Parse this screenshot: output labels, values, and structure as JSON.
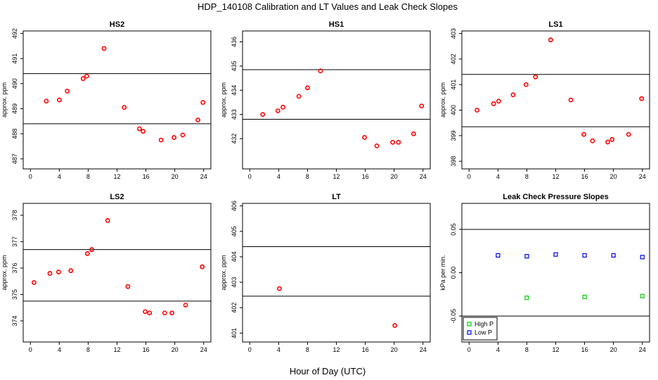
{
  "figure": {
    "title": "HDP_140108  Calibration and LT Values and Leak Check Slopes",
    "xlabel": "Hour of Day (UTC)"
  },
  "chart_data": [
    {
      "type": "scatter",
      "title": "HS2",
      "xlabel": "",
      "ylabel": "approx. ppm",
      "xlim": [
        -1,
        25
      ],
      "ylim": [
        486.6,
        492.1
      ],
      "xticks": [
        "0",
        "4",
        "8",
        "12",
        "16",
        "20",
        "24"
      ],
      "yticks": [
        "487",
        "488",
        "489",
        "490",
        "491",
        "492"
      ],
      "hlines": [
        490.4,
        488.4
      ],
      "series": [
        {
          "marker": "circle",
          "color": "#ff0000",
          "x": [
            2.2,
            4.0,
            5.1,
            7.3,
            7.8,
            10.2,
            13.0,
            15.1,
            15.6,
            18.1,
            19.9,
            21.1,
            23.2,
            23.9
          ],
          "y": [
            489.3,
            489.35,
            489.7,
            490.2,
            490.3,
            491.4,
            489.05,
            488.2,
            488.1,
            487.75,
            487.85,
            487.95,
            488.55,
            489.25
          ]
        }
      ]
    },
    {
      "type": "scatter",
      "title": "HS1",
      "xlabel": "",
      "ylabel": "approx. ppm",
      "xlim": [
        -1,
        25
      ],
      "ylim": [
        430.75,
        436.45
      ],
      "xticks": [
        "0",
        "4",
        "8",
        "12",
        "16",
        "20",
        "24"
      ],
      "yticks": [
        "432",
        "433",
        "434",
        "435",
        "436"
      ],
      "hlines": [
        434.85,
        432.8
      ],
      "series": [
        {
          "marker": "circle",
          "color": "#ff0000",
          "x": [
            1.8,
            3.9,
            4.6,
            6.8,
            8.0,
            9.8,
            15.9,
            17.6,
            19.8,
            20.6,
            22.7,
            23.8
          ],
          "y": [
            433.0,
            433.15,
            433.3,
            433.75,
            434.1,
            434.8,
            432.05,
            431.7,
            431.85,
            431.85,
            432.2,
            433.35
          ]
        }
      ]
    },
    {
      "type": "scatter",
      "title": "LS1",
      "xlabel": "",
      "ylabel": "approx. ppm",
      "xlim": [
        -1,
        25
      ],
      "ylim": [
        397.7,
        403.1
      ],
      "xticks": [
        "0",
        "4",
        "8",
        "12",
        "16",
        "20",
        "24"
      ],
      "yticks": [
        "398",
        "399",
        "400",
        "401",
        "402",
        "403"
      ],
      "hlines": [
        401.4,
        399.35
      ],
      "series": [
        {
          "marker": "circle",
          "color": "#ff0000",
          "x": [
            1.1,
            3.4,
            4.1,
            6.1,
            7.9,
            9.2,
            11.3,
            14.1,
            15.9,
            17.1,
            19.2,
            19.8,
            22.1,
            23.9
          ],
          "y": [
            400.0,
            400.25,
            400.35,
            400.6,
            401.0,
            401.3,
            402.75,
            400.4,
            399.05,
            398.8,
            398.75,
            398.85,
            399.05,
            400.45
          ]
        }
      ]
    },
    {
      "type": "scatter",
      "title": "LS2",
      "xlabel": "",
      "ylabel": "approx. ppm",
      "xlim": [
        -1,
        25
      ],
      "ylim": [
        373.2,
        378.45
      ],
      "xticks": [
        "0",
        "4",
        "8",
        "12",
        "16",
        "20",
        "24"
      ],
      "yticks": [
        "374",
        "375",
        "376",
        "377",
        "378"
      ],
      "hlines": [
        376.7,
        374.75
      ],
      "series": [
        {
          "marker": "circle",
          "color": "#ff0000",
          "x": [
            0.5,
            2.7,
            3.9,
            5.6,
            7.9,
            8.5,
            10.7,
            13.5,
            15.9,
            16.5,
            18.6,
            19.6,
            21.5,
            23.8
          ],
          "y": [
            375.45,
            375.8,
            375.85,
            375.9,
            376.55,
            376.7,
            377.8,
            375.3,
            374.35,
            374.3,
            374.3,
            374.3,
            374.6,
            376.05
          ]
        }
      ]
    },
    {
      "type": "scatter",
      "title": "LT",
      "xlabel": "",
      "ylabel": "approx. ppm",
      "xlim": [
        -1,
        25
      ],
      "ylim": [
        400.65,
        406.1
      ],
      "xticks": [
        "0",
        "4",
        "8",
        "12",
        "16",
        "20",
        "24"
      ],
      "yticks": [
        "401",
        "402",
        "403",
        "404",
        "405",
        "406"
      ],
      "hlines": [
        404.4,
        402.45
      ],
      "series": [
        {
          "marker": "circle",
          "color": "#ff0000",
          "x": [
            4.1,
            20.1
          ],
          "y": [
            402.75,
            401.3
          ]
        }
      ]
    },
    {
      "type": "scatter",
      "title": "Leak Check Pressure Slopes",
      "xlabel": "",
      "ylabel": "kPa per min.",
      "xlim": [
        -1,
        25
      ],
      "ylim": [
        -0.08,
        0.08
      ],
      "xticks": [
        "0",
        "4",
        "8",
        "12",
        "16",
        "20",
        "24"
      ],
      "yticks": [
        "-0.05",
        "0.00",
        "0.05"
      ],
      "yticks_values": [
        -0.05,
        0.0,
        0.05
      ],
      "hlines": [
        0.05,
        -0.05
      ],
      "legend": {
        "position": "bottom-left"
      },
      "series": [
        {
          "name": "High P",
          "marker": "square",
          "color": "#00cc00",
          "x": [
            8,
            16,
            24
          ],
          "y": [
            -0.029,
            -0.028,
            -0.027
          ]
        },
        {
          "name": "Low P",
          "marker": "square",
          "color": "#0000ff",
          "x": [
            4,
            8,
            12,
            16,
            20,
            24
          ],
          "y": [
            0.02,
            0.019,
            0.021,
            0.02,
            0.02,
            0.018
          ]
        }
      ]
    }
  ]
}
